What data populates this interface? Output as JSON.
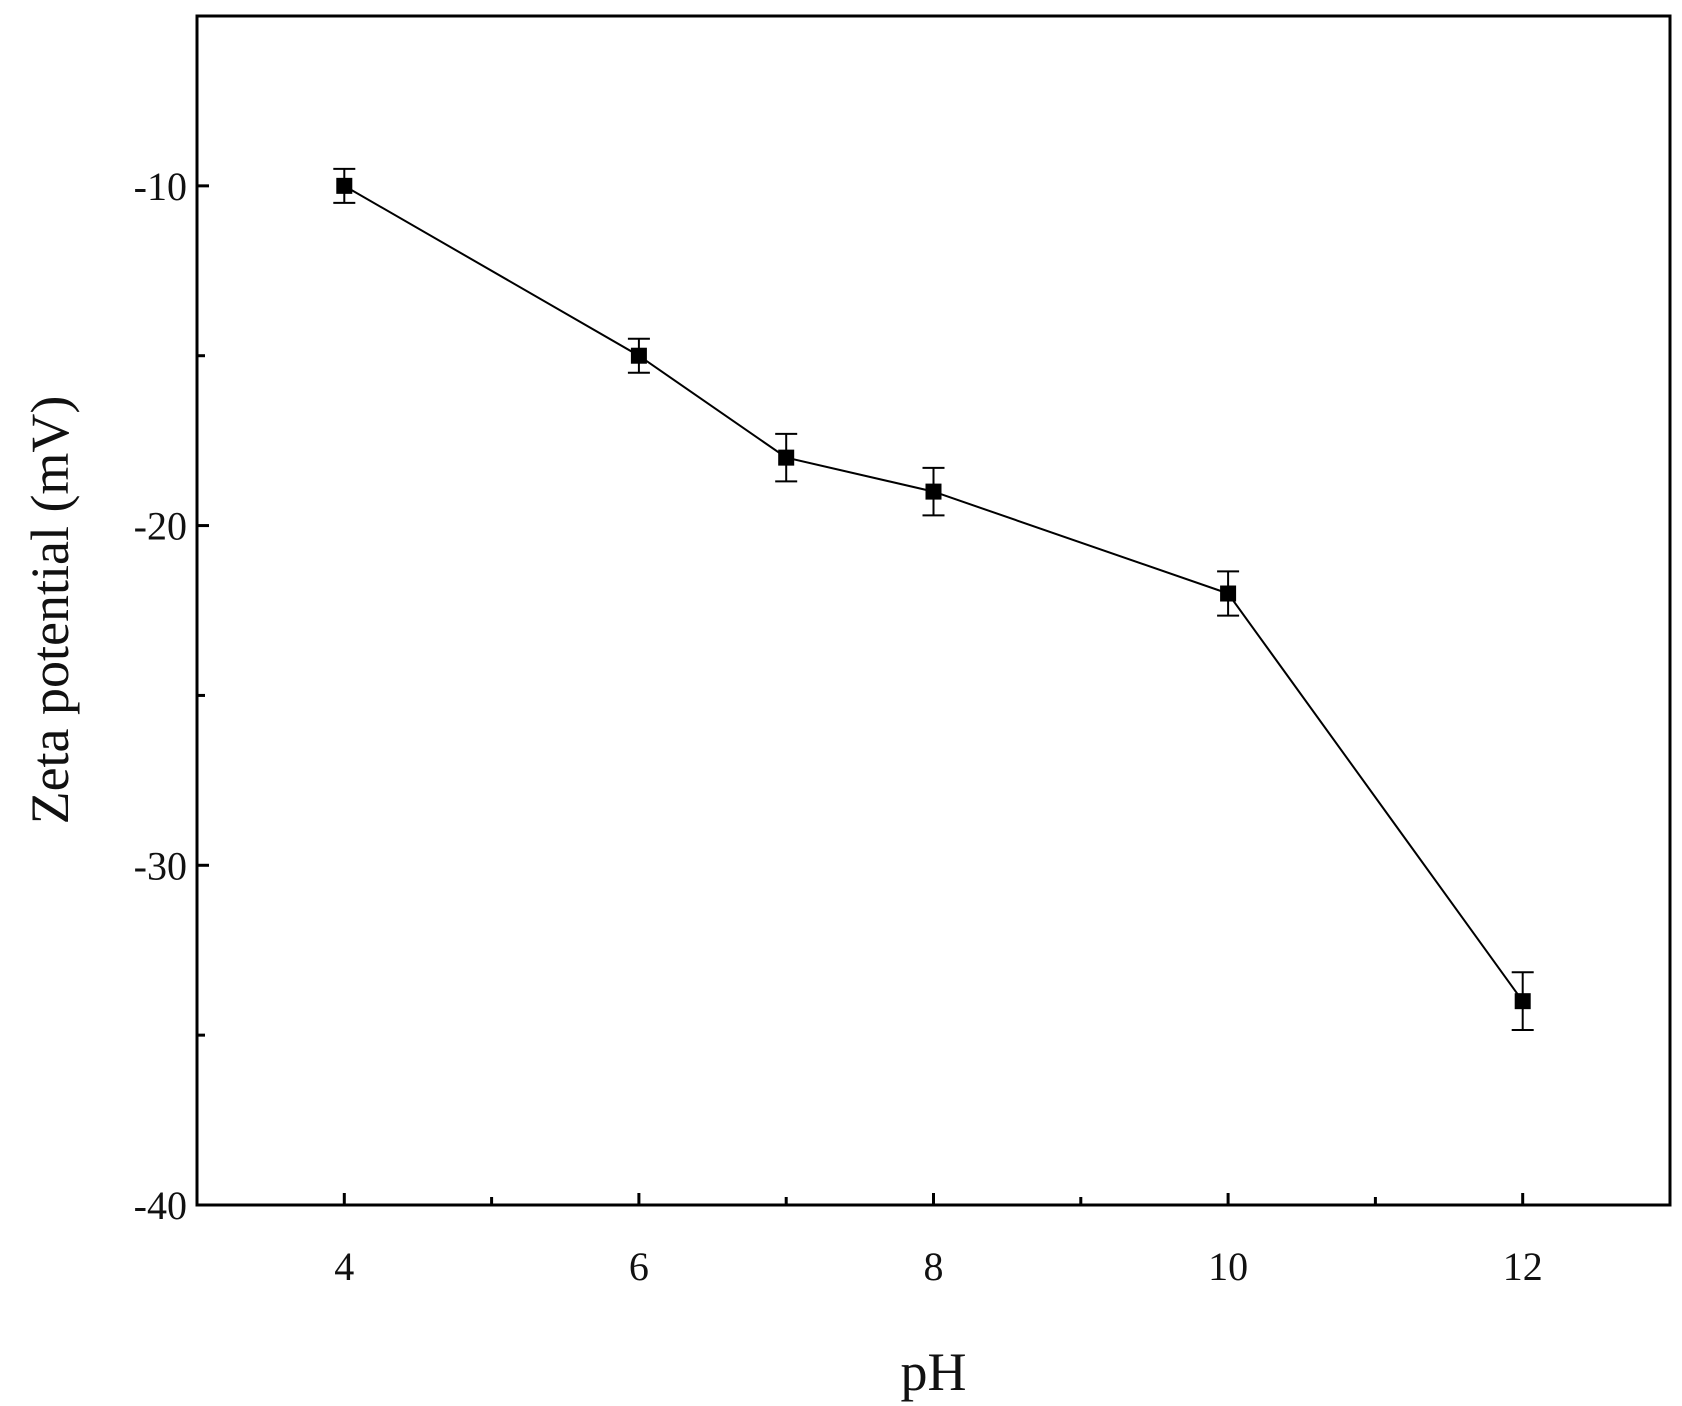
{
  "chart_data": {
    "type": "line",
    "title": "",
    "xlabel": "pH",
    "ylabel": "Zeta potential (mV)",
    "xlim": [
      3,
      13
    ],
    "ylim": [
      -40,
      -5
    ],
    "x_ticks": [
      4,
      6,
      8,
      10,
      12
    ],
    "x_minor_ticks": [
      5,
      7,
      9,
      11
    ],
    "y_ticks": [
      -10,
      -20,
      -30,
      -40
    ],
    "y_minor_ticks": [
      -15,
      -25,
      -35
    ],
    "grid": false,
    "legend": "none",
    "series": [
      {
        "marker": "square",
        "color": "#000000",
        "x": [
          4,
          6,
          7,
          8,
          10,
          12
        ],
        "y": [
          -10,
          -15,
          -18,
          -19,
          -22,
          -34
        ],
        "error": [
          0.5,
          0.5,
          0.7,
          0.7,
          0.65,
          0.85
        ]
      }
    ]
  }
}
